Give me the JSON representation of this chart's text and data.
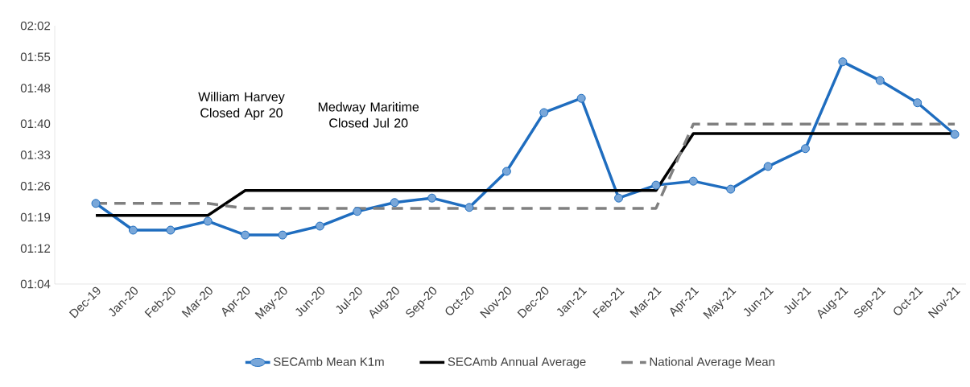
{
  "chart_data": {
    "type": "line",
    "categories": [
      "Dec-19",
      "Jan-20",
      "Feb-20",
      "Mar-20",
      "Apr-20",
      "May-20",
      "Jun-20",
      "Jul-20",
      "Aug-20",
      "Sep-20",
      "Oct-20",
      "Nov-20",
      "Dec-20",
      "Jan-21",
      "Feb-21",
      "Mar-21",
      "Apr-21",
      "May-21",
      "Jun-21",
      "Jul-21",
      "Aug-21",
      "Sep-21",
      "Oct-21",
      "Nov-21"
    ],
    "series": [
      {
        "name": "SECAmb Mean  K1m",
        "color": "#1f6dbf",
        "marker": "circle",
        "line_style": "solid",
        "values": [
          82.1,
          76.1,
          76.1,
          78.1,
          75.0,
          75.0,
          77.0,
          80.3,
          82.3,
          83.3,
          81.2,
          89.3,
          102.5,
          105.7,
          83.3,
          86.2,
          87.1,
          85.3,
          90.4,
          94.4,
          113.9,
          109.7,
          104.7,
          97.6
        ]
      },
      {
        "name": "SECAmb Annual Average",
        "color": "#000000",
        "marker": "none",
        "line_style": "solid",
        "values": [
          79.4,
          79.4,
          79.4,
          79.4,
          85.0,
          85.0,
          85.0,
          85.0,
          85.0,
          85.0,
          85.0,
          85.0,
          85.0,
          85.0,
          85.0,
          85.0,
          97.8,
          97.8,
          97.8,
          97.8,
          97.8,
          97.8,
          97.8,
          97.8
        ]
      },
      {
        "name": "National Average Mean",
        "color": "#808080",
        "marker": "none",
        "line_style": "dashed",
        "values": [
          82.1,
          82.1,
          82.1,
          82.1,
          81.0,
          81.0,
          81.0,
          81.0,
          81.0,
          81.0,
          81.0,
          81.0,
          81.0,
          81.0,
          81.0,
          81.0,
          99.9,
          99.9,
          99.9,
          99.9,
          99.9,
          99.9,
          99.9,
          99.9
        ]
      }
    ],
    "ylim": [
      64,
      122
    ],
    "yticks": [
      {
        "value": 64,
        "label": "01:04"
      },
      {
        "value": 72,
        "label": "01:12"
      },
      {
        "value": 79,
        "label": "01:19"
      },
      {
        "value": 86,
        "label": "01:26"
      },
      {
        "value": 93,
        "label": "01:33"
      },
      {
        "value": 100,
        "label": "01:40"
      },
      {
        "value": 108,
        "label": "01:48"
      },
      {
        "value": 115,
        "label": "01:55"
      },
      {
        "value": 122,
        "label": "02:02"
      }
    ],
    "annotations": [
      "William Harvey Closed Apr 20",
      "Medway Maritime Closed Jul 20"
    ],
    "grid": false,
    "legend": "bottom"
  }
}
